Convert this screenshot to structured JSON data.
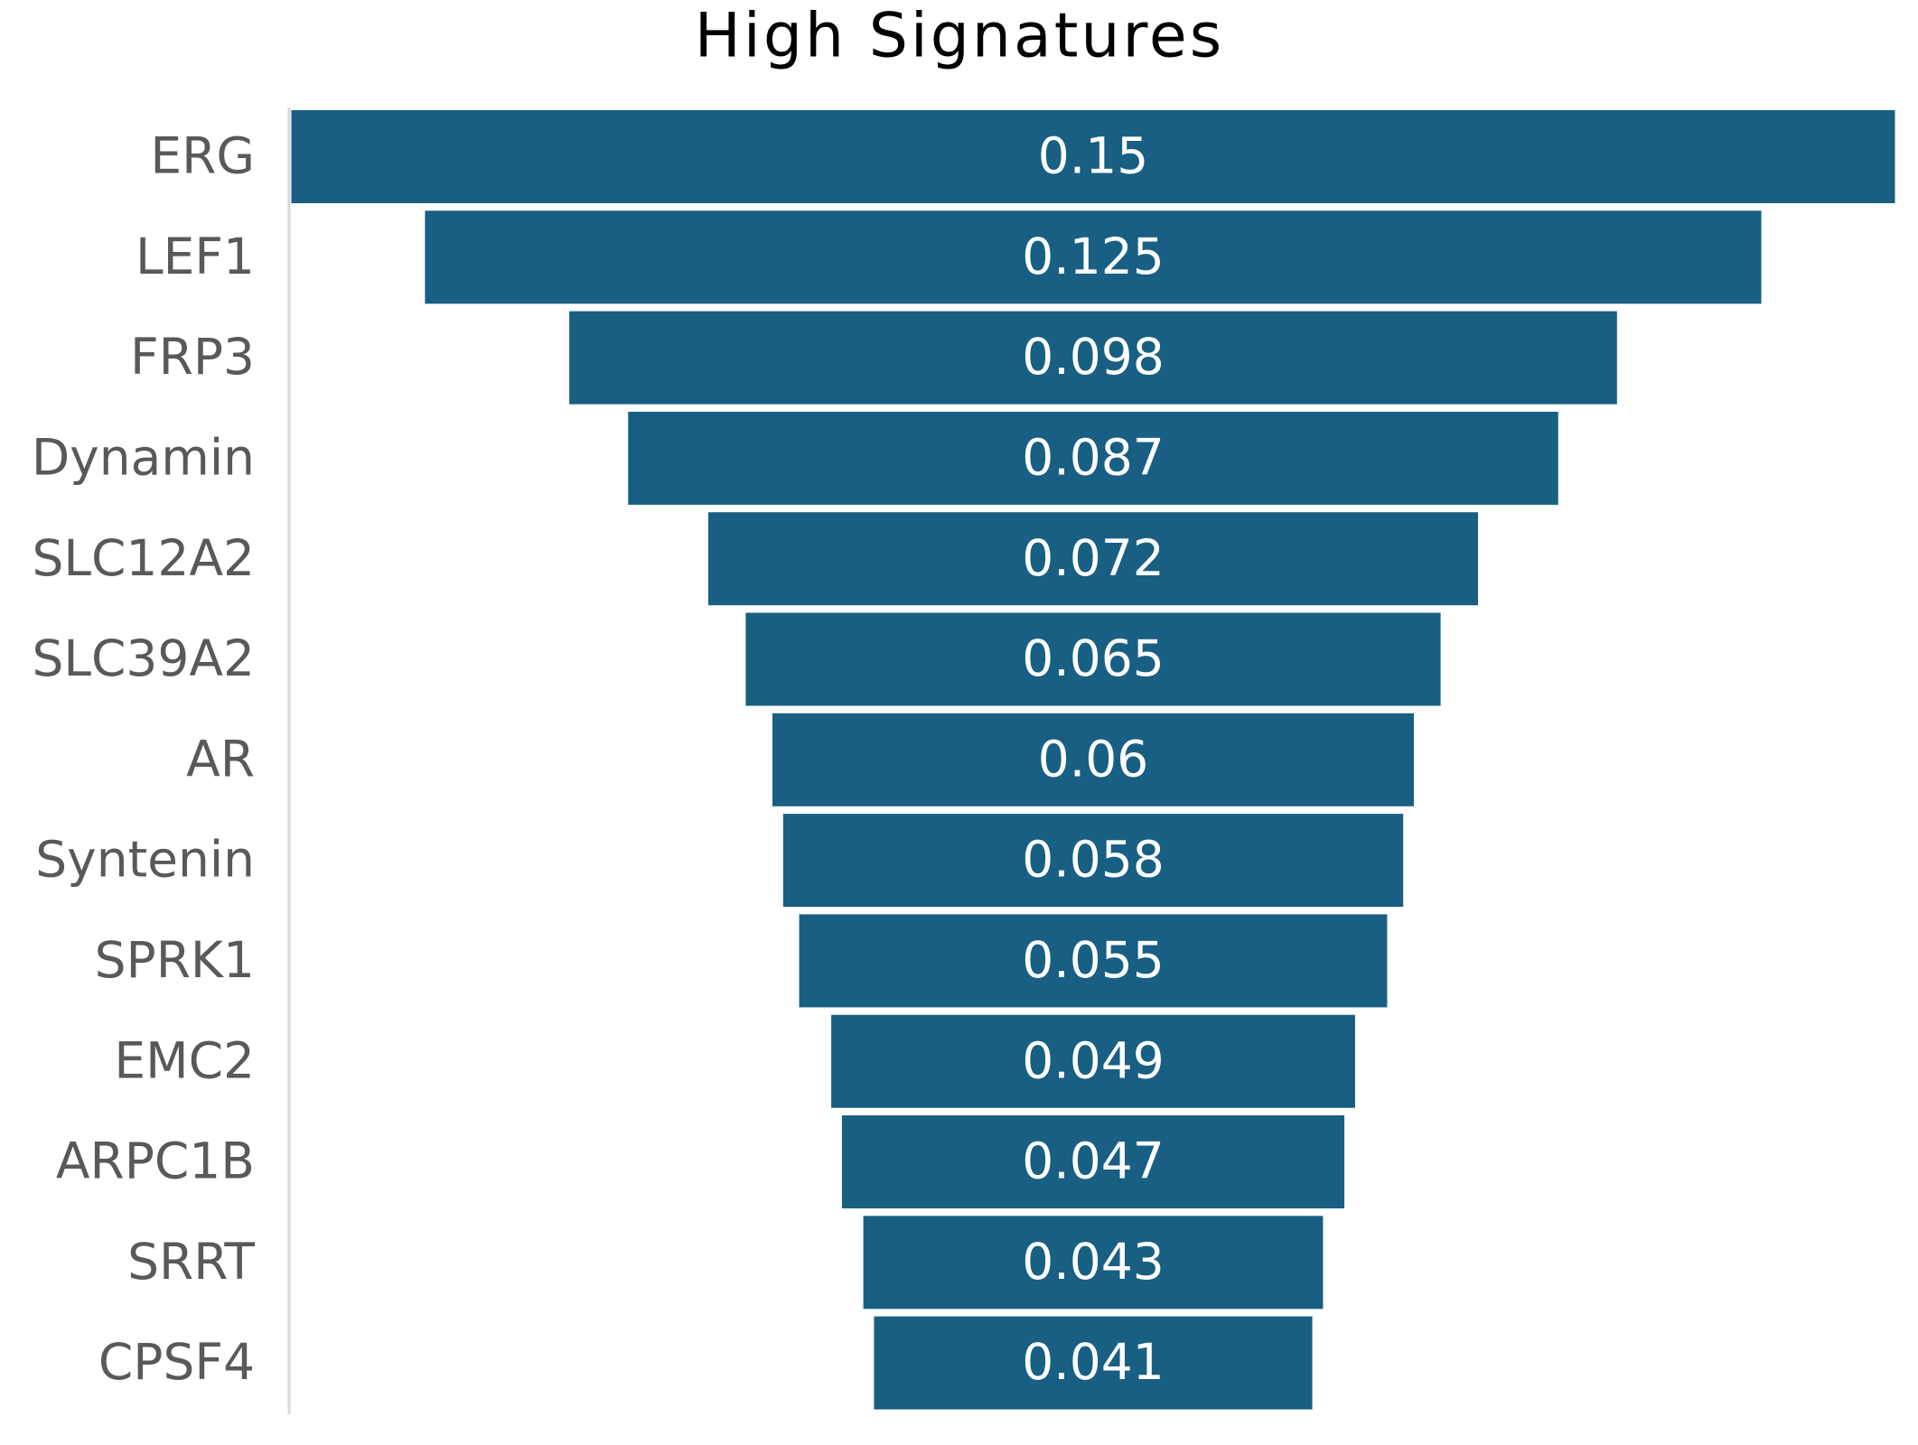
{
  "chart_data": {
    "type": "funnel",
    "title": "High Signatures",
    "categories": [
      "ERG",
      "LEF1",
      "FRP3",
      "Dynamin",
      "SLC12A2",
      "SLC39A2",
      "AR",
      "Syntenin",
      "SPRK1",
      "EMC2",
      "ARPC1B",
      "SRRT",
      "CPSF4"
    ],
    "values": [
      0.15,
      0.125,
      0.098,
      0.087,
      0.072,
      0.065,
      0.06,
      0.058,
      0.055,
      0.049,
      0.047,
      0.043,
      0.041
    ],
    "color": "#185f83"
  }
}
